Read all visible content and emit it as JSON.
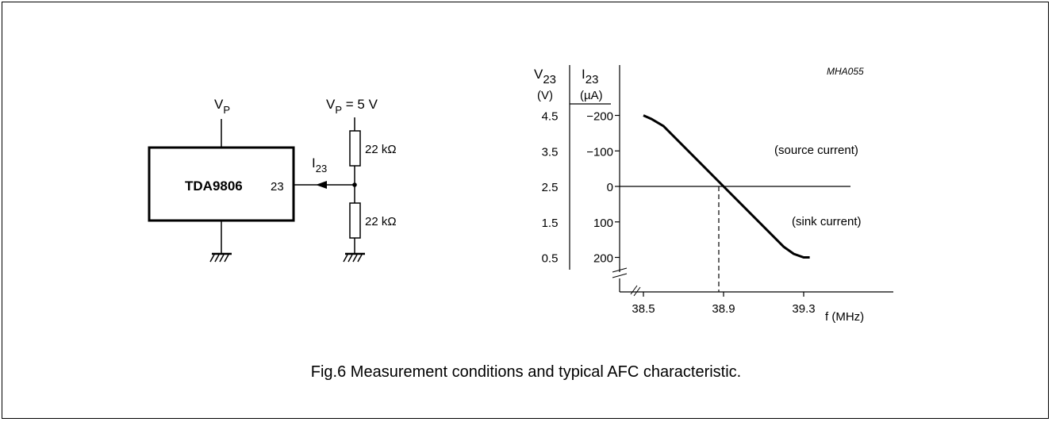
{
  "circuit": {
    "ic_label": "TDA9806",
    "pin_label": "23",
    "supply_left": {
      "main": "V",
      "sub": "P"
    },
    "supply_right": {
      "main": "V",
      "sub": "P",
      "suffix": " = 5 V"
    },
    "current": {
      "main": "I",
      "sub": "23"
    },
    "resistor_top": "22 kΩ",
    "resistor_bottom": "22 kΩ"
  },
  "graph": {
    "code": "MHA055",
    "v_header": {
      "main": "V",
      "sub": "23",
      "unit": "(V)"
    },
    "i_header": {
      "main": "I",
      "sub": "23",
      "unit": "(µA)"
    },
    "v_ticks": [
      "4.5",
      "3.5",
      "2.5",
      "1.5",
      "0.5"
    ],
    "i_ticks": [
      "−200",
      "−100",
      "0",
      "100",
      "200"
    ],
    "x_ticks": [
      "38.5",
      "38.9",
      "39.3"
    ],
    "x_label": "f (MHz)",
    "annotation_source": "(source current)",
    "annotation_sink": "(sink current)"
  },
  "chart_data": {
    "type": "line",
    "x": [
      38.5,
      38.54,
      38.6,
      38.9,
      39.2,
      39.25,
      39.3,
      39.33
    ],
    "y": [
      -200,
      -190,
      -170,
      0,
      170,
      190,
      200,
      200
    ],
    "xlabel": "f (MHz)",
    "ylabel": "I23 (µA)",
    "secondary_ylabel": "V23 (V)",
    "secondary_y_ticks": [
      4.5,
      3.5,
      2.5,
      1.5,
      0.5
    ],
    "y_ticks": [
      -200,
      -100,
      0,
      100,
      200
    ],
    "x_ticks": [
      38.5,
      38.9,
      39.3
    ],
    "series": [
      {
        "name": "",
        "values": [
          -200,
          -190,
          -170,
          0,
          170,
          190,
          200,
          200
        ]
      }
    ],
    "reference_line": {
      "x": 38.9,
      "style": "dashed"
    }
  },
  "caption": "Fig.6  Measurement conditions and typical AFC characteristic."
}
